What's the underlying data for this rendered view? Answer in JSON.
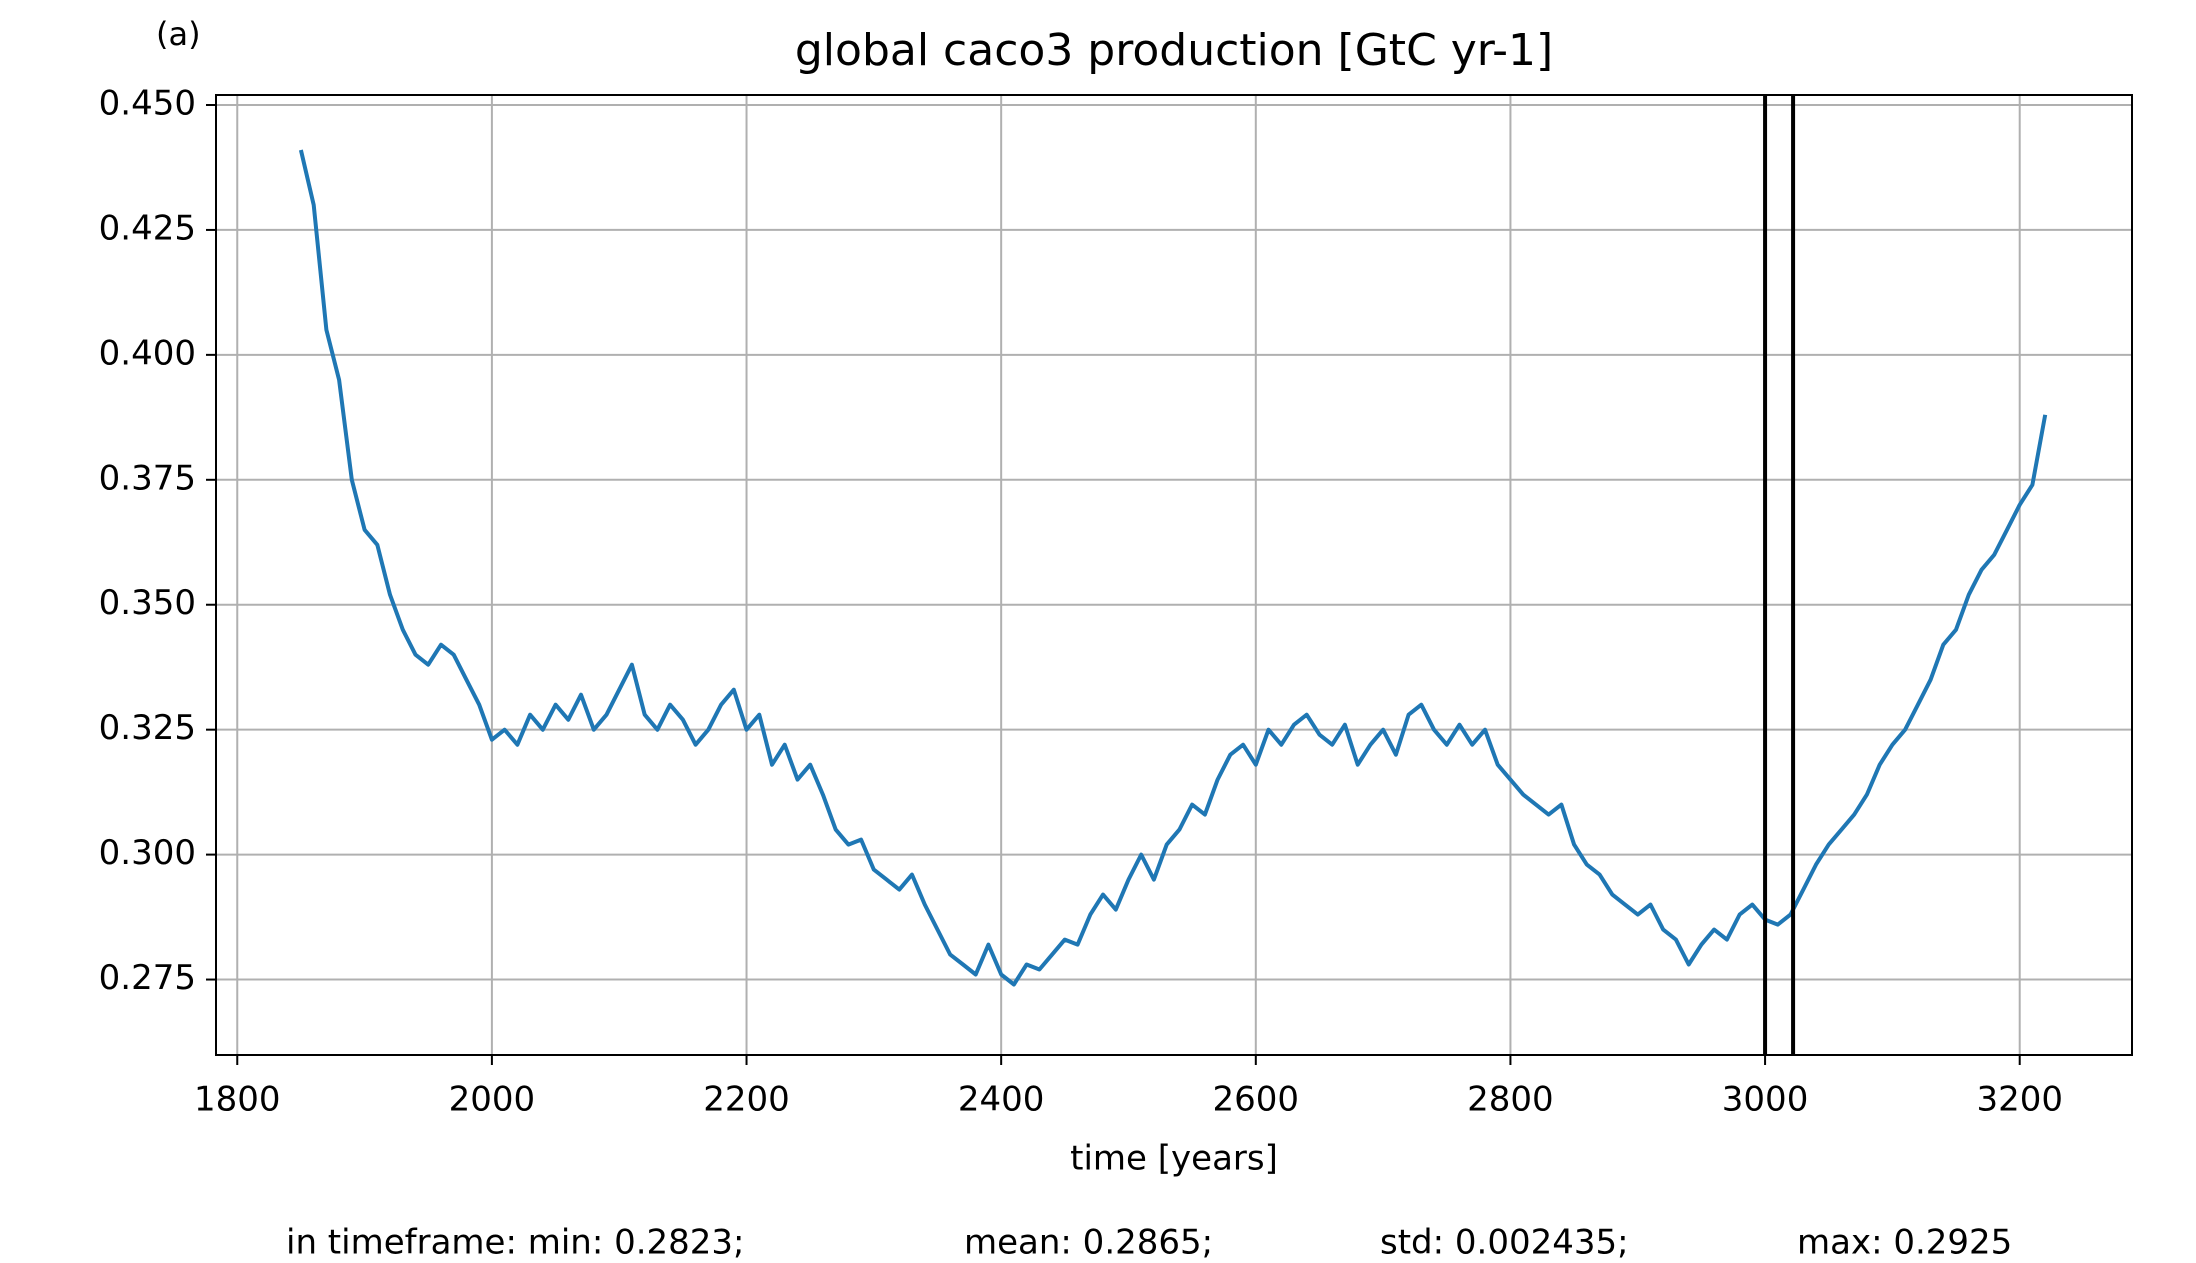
{
  "chart_data": {
    "type": "line",
    "panel_label": "(a)",
    "title": "global caco3 production [GtC yr-1]",
    "x_label": "time [years]",
    "footer": [
      "in timeframe: min: 0.2823;",
      "mean: 0.2865;",
      "std: 0.002435;",
      "max: 0.2925"
    ],
    "x": [
      1850,
      1860,
      1870,
      1880,
      1890,
      1900,
      1910,
      1920,
      1930,
      1940,
      1950,
      1960,
      1970,
      1980,
      1990,
      2000,
      2010,
      2020,
      2030,
      2040,
      2050,
      2060,
      2070,
      2080,
      2090,
      2100,
      2110,
      2120,
      2130,
      2140,
      2150,
      2160,
      2170,
      2180,
      2190,
      2200,
      2210,
      2220,
      2230,
      2240,
      2250,
      2260,
      2270,
      2280,
      2290,
      2300,
      2310,
      2320,
      2330,
      2340,
      2350,
      2360,
      2370,
      2380,
      2390,
      2400,
      2410,
      2420,
      2430,
      2440,
      2450,
      2460,
      2470,
      2480,
      2490,
      2500,
      2510,
      2520,
      2530,
      2540,
      2550,
      2560,
      2570,
      2580,
      2590,
      2600,
      2610,
      2620,
      2630,
      2640,
      2650,
      2660,
      2670,
      2680,
      2690,
      2700,
      2710,
      2720,
      2730,
      2740,
      2750,
      2760,
      2770,
      2780,
      2790,
      2800,
      2810,
      2820,
      2830,
      2840,
      2850,
      2860,
      2870,
      2880,
      2890,
      2900,
      2910,
      2920,
      2930,
      2940,
      2950,
      2960,
      2970,
      2980,
      2990,
      3000,
      3010,
      3020,
      3030,
      3040,
      3050,
      3060,
      3070,
      3080,
      3090,
      3100,
      3110,
      3120,
      3130,
      3140,
      3150,
      3160,
      3170,
      3180,
      3190,
      3200,
      3210,
      3220
    ],
    "series": [
      {
        "name": "global caco3 production",
        "color": "#1f77b4",
        "values": [
          0.441,
          0.43,
          0.405,
          0.395,
          0.375,
          0.365,
          0.362,
          0.352,
          0.345,
          0.34,
          0.338,
          0.342,
          0.34,
          0.335,
          0.33,
          0.323,
          0.325,
          0.322,
          0.328,
          0.325,
          0.33,
          0.327,
          0.332,
          0.325,
          0.328,
          0.333,
          0.338,
          0.328,
          0.325,
          0.33,
          0.327,
          0.322,
          0.325,
          0.33,
          0.333,
          0.325,
          0.328,
          0.318,
          0.322,
          0.315,
          0.318,
          0.312,
          0.305,
          0.302,
          0.303,
          0.297,
          0.295,
          0.293,
          0.296,
          0.29,
          0.285,
          0.28,
          0.278,
          0.276,
          0.282,
          0.276,
          0.274,
          0.278,
          0.277,
          0.28,
          0.283,
          0.282,
          0.288,
          0.292,
          0.289,
          0.295,
          0.3,
          0.295,
          0.302,
          0.305,
          0.31,
          0.308,
          0.315,
          0.32,
          0.322,
          0.318,
          0.325,
          0.322,
          0.326,
          0.328,
          0.324,
          0.322,
          0.326,
          0.318,
          0.322,
          0.325,
          0.32,
          0.328,
          0.33,
          0.325,
          0.322,
          0.326,
          0.322,
          0.325,
          0.318,
          0.315,
          0.312,
          0.31,
          0.308,
          0.31,
          0.302,
          0.298,
          0.296,
          0.292,
          0.29,
          0.288,
          0.29,
          0.285,
          0.283,
          0.278,
          0.282,
          0.285,
          0.283,
          0.288,
          0.29,
          0.287,
          0.286,
          0.288,
          0.293,
          0.298,
          0.302,
          0.305,
          0.308,
          0.312,
          0.318,
          0.322,
          0.325,
          0.33,
          0.335,
          0.342,
          0.345,
          0.352,
          0.357,
          0.36,
          0.365,
          0.37,
          0.374,
          0.388
        ]
      }
    ],
    "vlines": [
      3000,
      3022
    ],
    "xlim": [
      1783.3,
      3288.2
    ],
    "ylim": [
      0.2599,
      0.452
    ],
    "xticks": [
      1800,
      2000,
      2200,
      2400,
      2600,
      2800,
      3000,
      3200
    ],
    "yticks": [
      0.275,
      {
        "value": 0.3,
        "label": "0.300"
      },
      0.325,
      {
        "value": 0.35,
        "label": "0.350"
      },
      0.375,
      {
        "value": 0.4,
        "label": "0.400"
      },
      0.425,
      {
        "value": 0.45,
        "label": "0.450"
      }
    ],
    "grid": true
  }
}
